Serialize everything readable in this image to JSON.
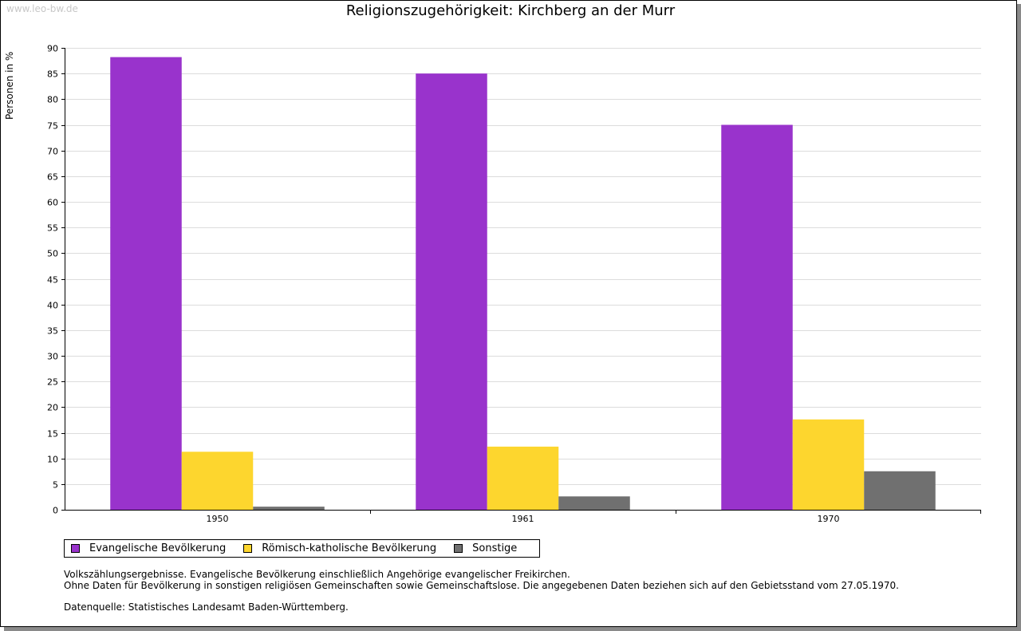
{
  "watermark": "www.leo-bw.de",
  "chart_data": {
    "type": "bar",
    "title": "Religionszugehörigkeit: Kirchberg an der Murr",
    "xlabel": "",
    "ylabel": "Personen in %",
    "ylim": [
      0,
      90
    ],
    "yticks": [
      0,
      5,
      10,
      15,
      20,
      25,
      30,
      35,
      40,
      45,
      50,
      55,
      60,
      65,
      70,
      75,
      80,
      85,
      90
    ],
    "grid": true,
    "legend_position": "bottom-left",
    "categories": [
      "1950",
      "1961",
      "1970"
    ],
    "series": [
      {
        "name": "Evangelische Bevölkerung",
        "color": "#9933cc",
        "values": [
          88.2,
          85.0,
          75.0
        ]
      },
      {
        "name": "Römisch-katholische Bevölkerung",
        "color": "#fdd62e",
        "values": [
          11.3,
          12.3,
          17.6
        ]
      },
      {
        "name": "Sonstige",
        "color": "#707070",
        "values": [
          0.6,
          2.6,
          7.5
        ]
      }
    ]
  },
  "notes": {
    "line1": "Volkszählungsergebnisse. Evangelische Bevölkerung einschließlich Angehörige evangelischer Freikirchen.",
    "line2": "Ohne Daten für Bevölkerung in sonstigen religiösen Gemeinschaften sowie Gemeinschaftslose. Die angegebenen Daten beziehen sich auf den Gebietsstand vom 27.05.1970.",
    "source": "Datenquelle: Statistisches Landesamt Baden-Württemberg."
  }
}
